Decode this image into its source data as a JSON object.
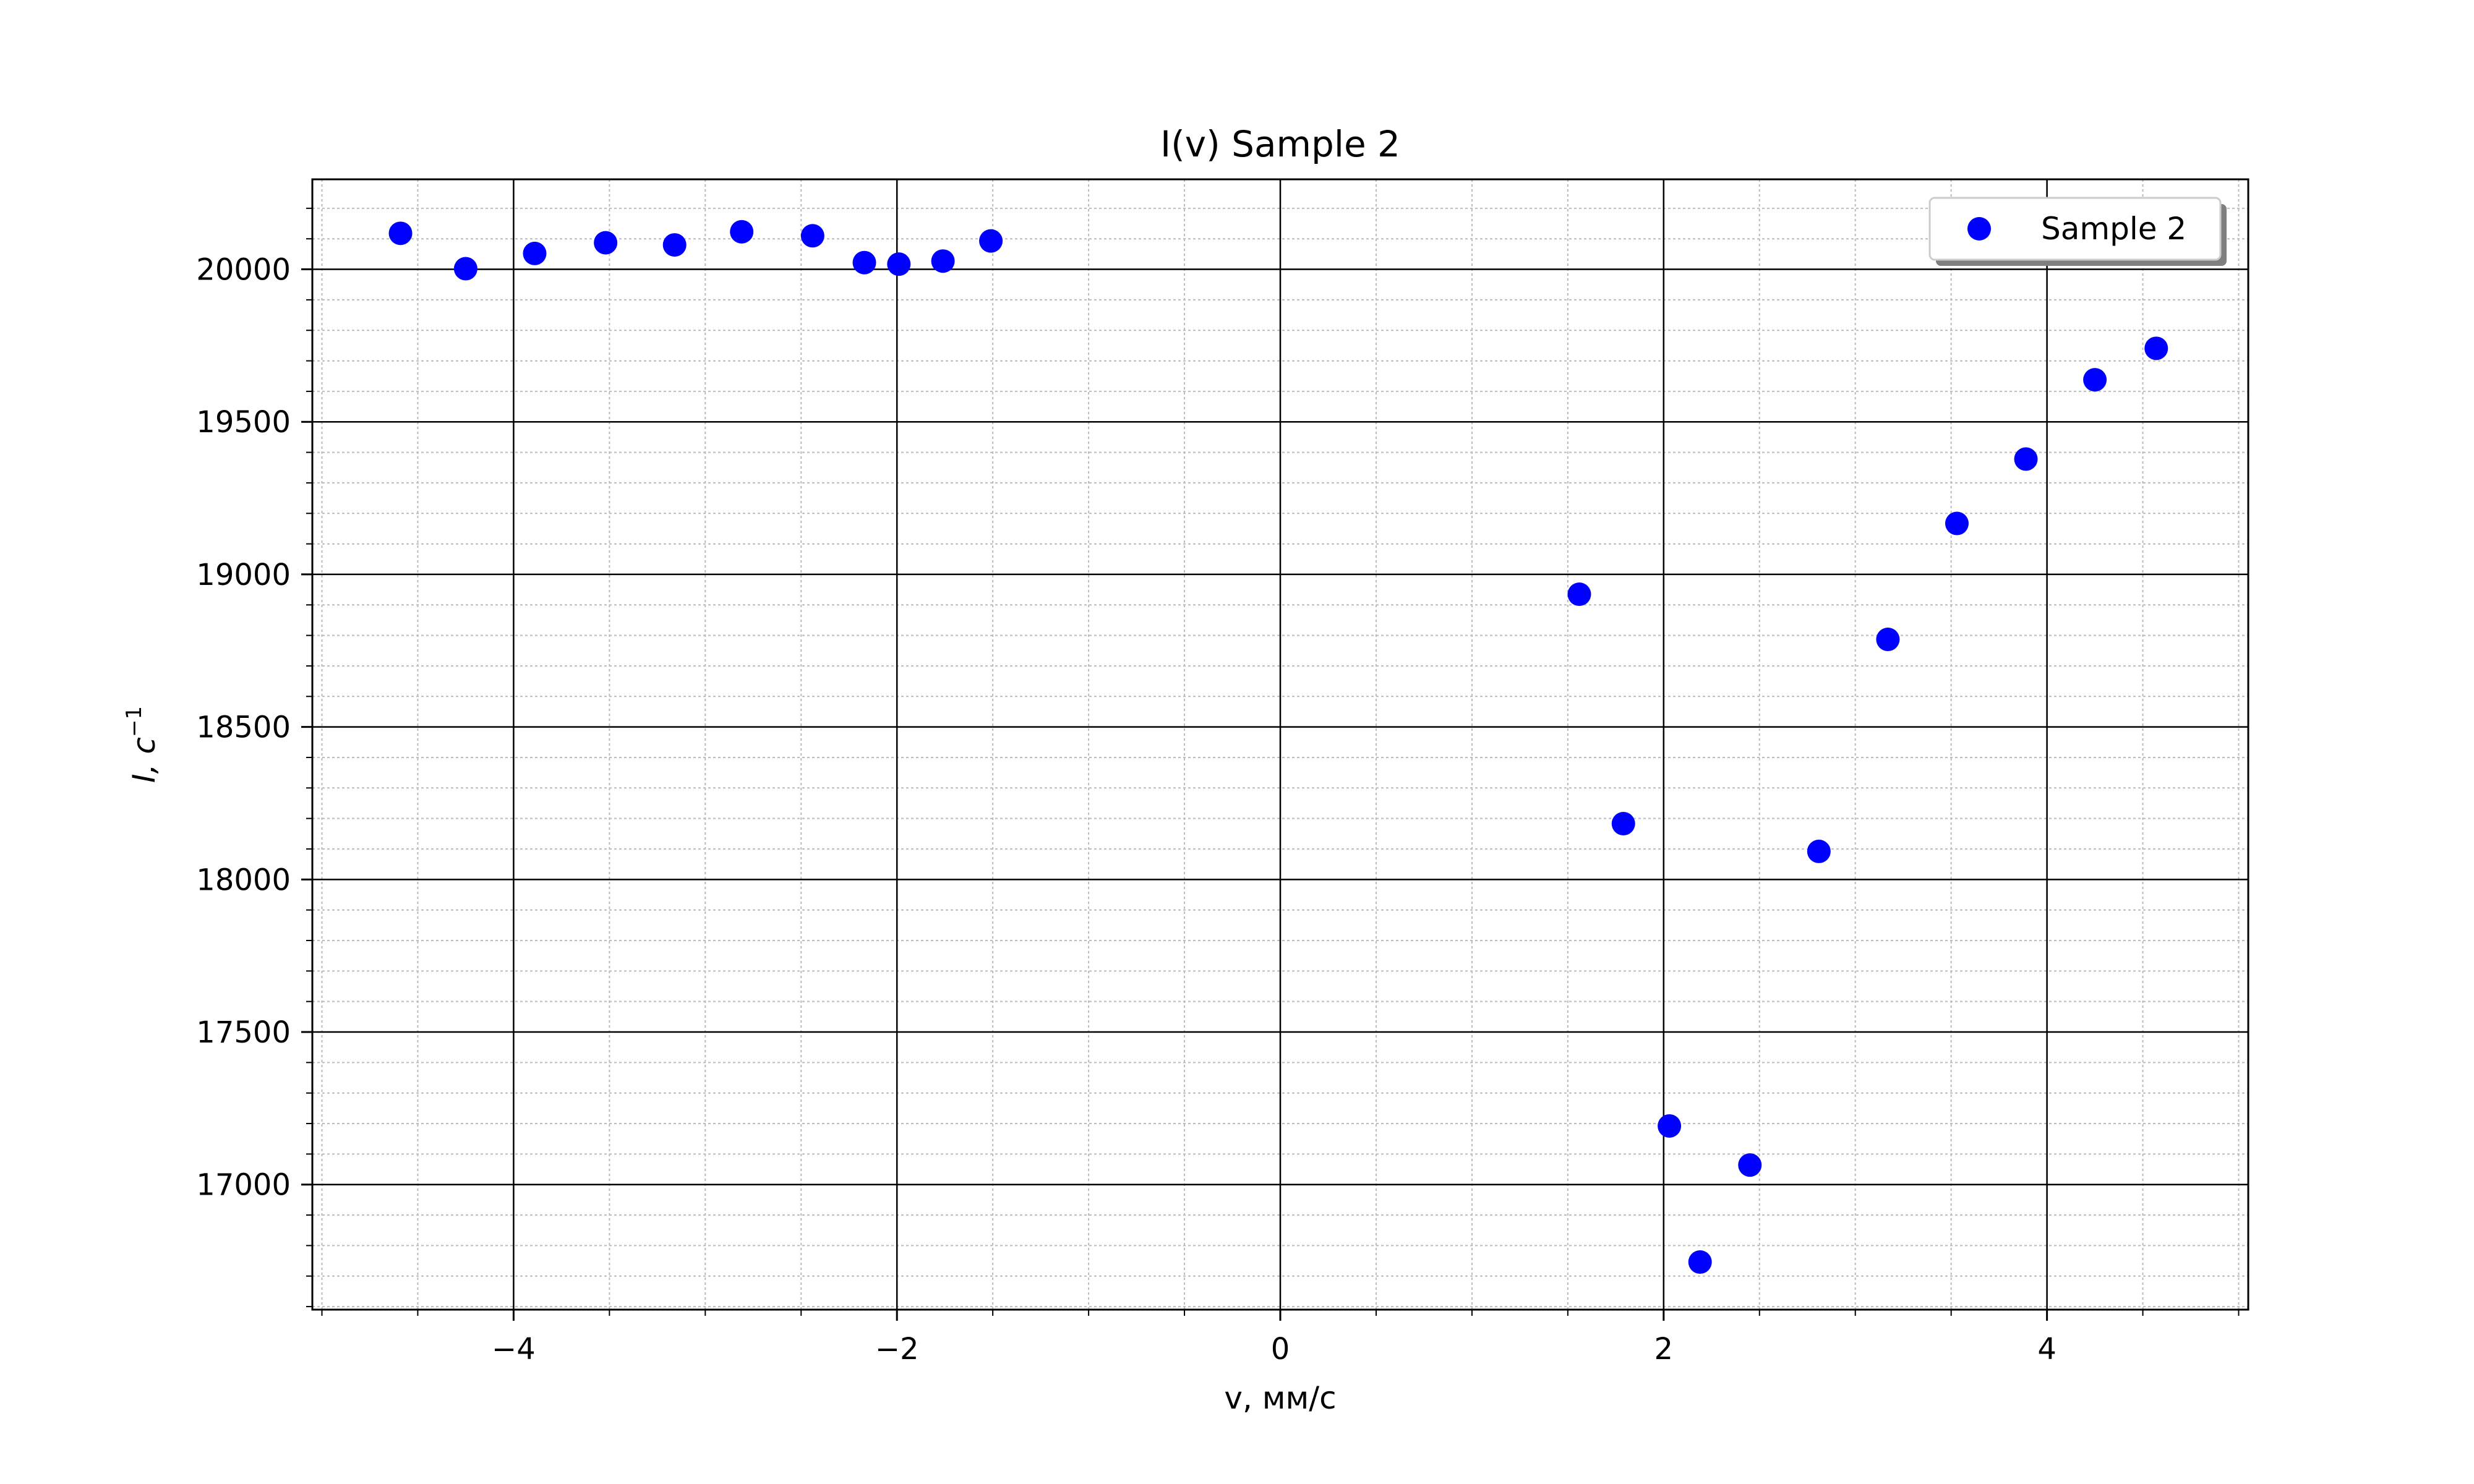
{
  "chart_data": {
    "type": "scatter",
    "title": "I(v) Sample 2",
    "xlabel": "v, мм/с",
    "ylabel": "I, c",
    "ylabel_superscript": "−1",
    "xlim": [
      -5.05,
      5.05
    ],
    "ylim": [
      16590,
      20295
    ],
    "x_ticks": [
      -4,
      -2,
      0,
      2,
      4
    ],
    "x_tick_labels": [
      "−4",
      "−2",
      "0",
      "2",
      "4"
    ],
    "y_ticks": [
      17000,
      17500,
      18000,
      18500,
      19000,
      19500,
      20000
    ],
    "y_tick_labels": [
      "17000",
      "17500",
      "18000",
      "18500",
      "19000",
      "19500",
      "20000"
    ],
    "x_minor_step": 0.5,
    "y_minor_step": 100,
    "grid": true,
    "minor_grid": true,
    "legend_position": "top-right",
    "series": [
      {
        "name": "Sample 2",
        "color": "#0000ff",
        "points": [
          [
            -4.59,
            20118
          ],
          [
            -4.25,
            20002
          ],
          [
            -3.89,
            20052
          ],
          [
            -3.52,
            20087
          ],
          [
            -3.16,
            20080
          ],
          [
            -2.81,
            20123
          ],
          [
            -2.44,
            20110
          ],
          [
            -2.17,
            20022
          ],
          [
            -1.99,
            20017
          ],
          [
            -1.76,
            20027
          ],
          [
            -1.51,
            20093
          ],
          [
            1.56,
            18935
          ],
          [
            1.79,
            18183
          ],
          [
            2.03,
            17192
          ],
          [
            2.19,
            16746
          ],
          [
            2.45,
            17064
          ],
          [
            2.81,
            18092
          ],
          [
            3.17,
            18787
          ],
          [
            3.53,
            19167
          ],
          [
            3.89,
            19378
          ],
          [
            4.25,
            19638
          ],
          [
            4.57,
            19741
          ]
        ]
      }
    ]
  }
}
